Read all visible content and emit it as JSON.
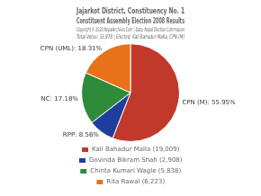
{
  "chart_data": {
    "type": "pie",
    "title": "Jajarkot District, Constituency No. 1",
    "subtitle": "Constituent Assembly Election 2008 Results",
    "annotations": [
      "Copyright © 2020 NepalArchives.Com | Data: Nepal Election Commission",
      "Total Votes: 33,978 | Elected: Kali Bahadur Malla, CPN (M)"
    ],
    "categories": [
      "Kali Bahadur Malla (19,009)",
      "Govinda Bikram Shah (2,908)",
      "Chinta Kumari Wagle (5,838)",
      "Rita Rawal (6,223)"
    ],
    "values": [
      55.95,
      8.56,
      17.18,
      18.31
    ],
    "value_labels": [
      "CPN (M): 55.95%",
      "RPP: 8.56%",
      "NC: 17.18%",
      "CPN (UML): 18.31%"
    ],
    "colors": [
      "#c0392b",
      "#1f3f9e",
      "#2e8b3a",
      "#e8721a"
    ],
    "data_labels": true,
    "legend": "bottom"
  }
}
